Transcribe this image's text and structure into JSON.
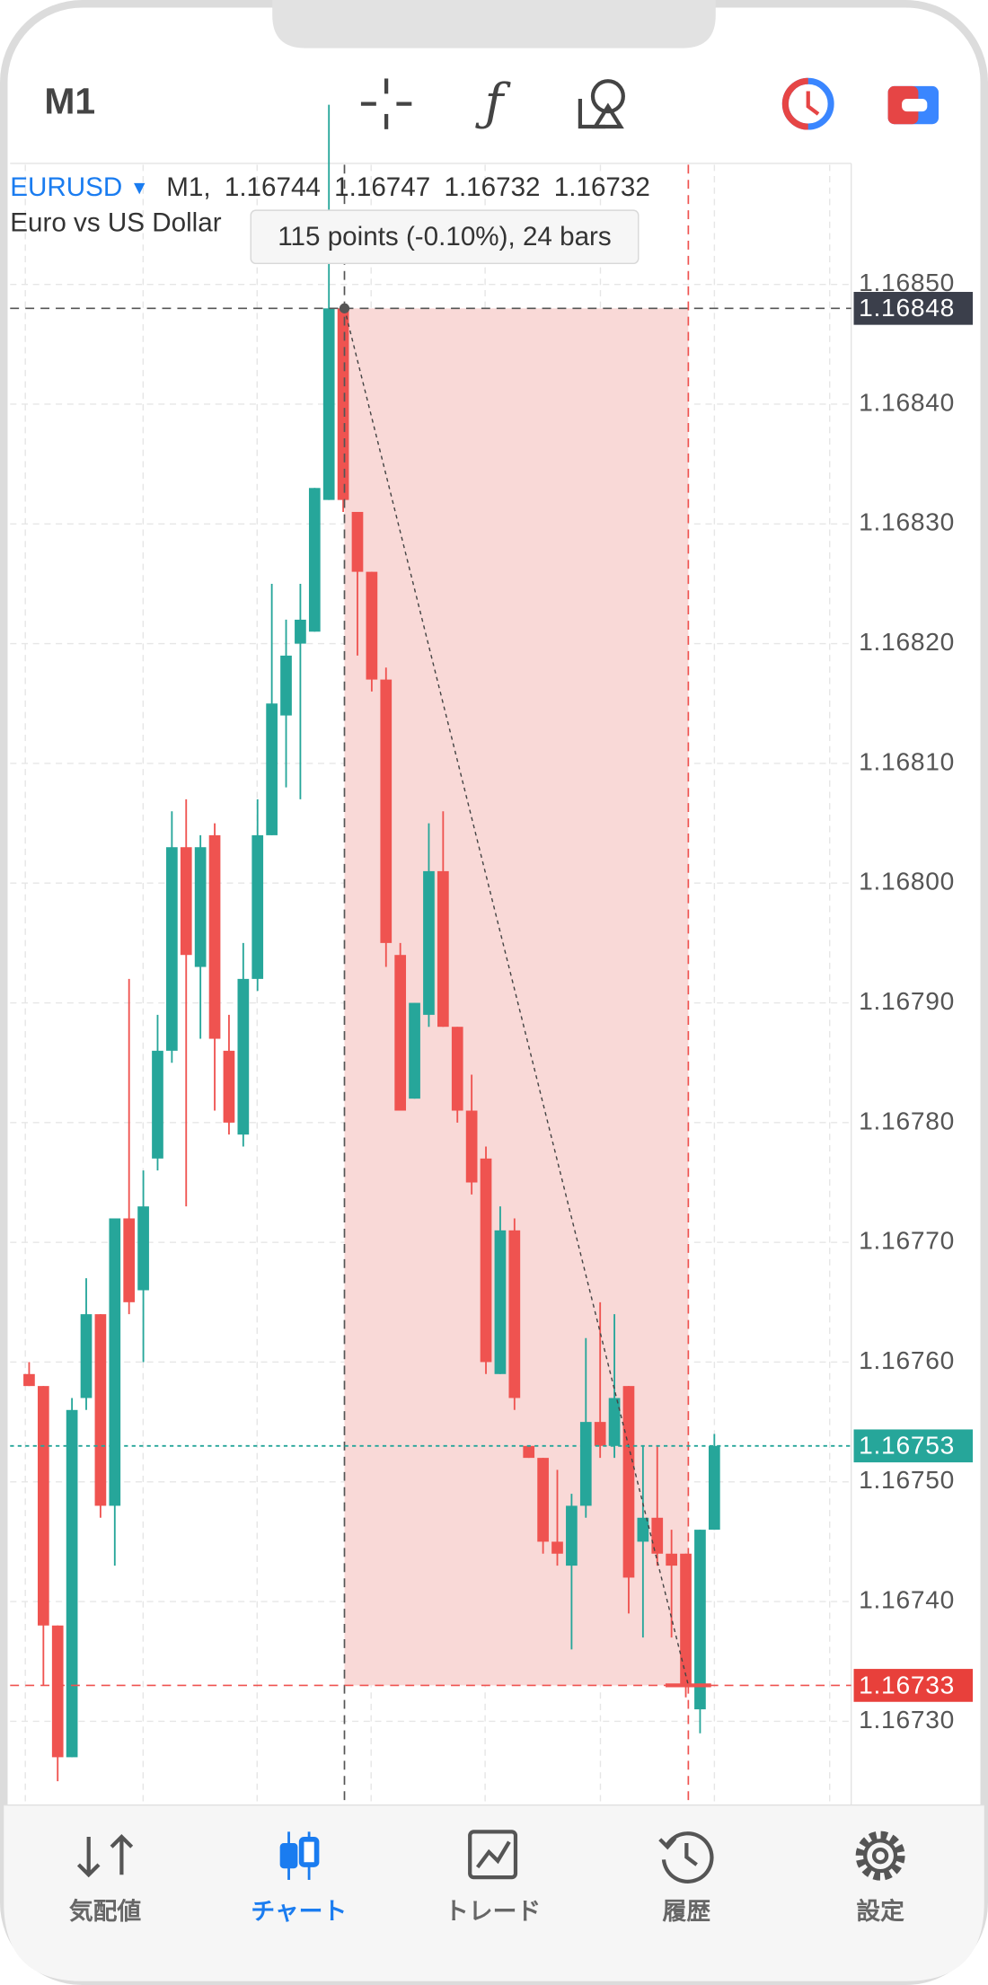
{
  "toolbar": {
    "timeframe": "M1"
  },
  "chart_data": {
    "type": "candlestick",
    "symbol": "EURUSD",
    "timeframe": "M1,",
    "ohlc": [
      1.16744,
      1.16747,
      1.16732,
      1.16732
    ],
    "description": "Euro vs US Dollar",
    "measure_label": "115 points (-0.10%), 24 bars",
    "up_color": "#26a69a",
    "down_color": "#ef5350",
    "open": [
      1.16759,
      1.16758,
      1.16738,
      1.16727,
      1.16757,
      1.16764,
      1.16748,
      1.16772,
      1.16766,
      1.16777,
      1.16786,
      1.16803,
      1.16793,
      1.16804,
      1.16786,
      1.16779,
      1.16792,
      1.16804,
      1.16814,
      1.1682,
      1.16821,
      1.16832,
      1.16848,
      1.16831,
      1.16826,
      1.16817,
      1.16794,
      1.16782,
      1.16789,
      1.16801,
      1.16788,
      1.16781,
      1.16777,
      1.16759,
      1.16771,
      1.16753,
      1.16752,
      1.16745,
      1.16743,
      1.16748,
      1.16755,
      1.16753,
      1.16758,
      1.16745,
      1.16747,
      1.16744,
      1.16744,
      1.16731,
      1.16746
    ],
    "high": [
      1.1676,
      1.16758,
      1.16738,
      1.16757,
      1.16767,
      1.16764,
      1.16772,
      1.16792,
      1.16776,
      1.16789,
      1.16806,
      1.16807,
      1.16804,
      1.16805,
      1.16789,
      1.16795,
      1.16807,
      1.16825,
      1.16822,
      1.16825,
      1.16833,
      1.16865,
      1.16848,
      1.16831,
      1.16826,
      1.16818,
      1.16795,
      1.1679,
      1.16805,
      1.16806,
      1.16788,
      1.16784,
      1.16778,
      1.16773,
      1.16772,
      1.16753,
      1.16752,
      1.16751,
      1.16749,
      1.16762,
      1.16765,
      1.16764,
      1.16758,
      1.16753,
      1.16753,
      1.16746,
      1.16744,
      1.16746,
      1.16754
    ],
    "low": [
      1.16758,
      1.16733,
      1.16725,
      1.16727,
      1.16756,
      1.16747,
      1.16743,
      1.16764,
      1.1676,
      1.16776,
      1.16785,
      1.16773,
      1.16787,
      1.16781,
      1.16779,
      1.16778,
      1.16791,
      1.16804,
      1.16808,
      1.16807,
      1.16821,
      1.16832,
      1.16831,
      1.16819,
      1.16816,
      1.16793,
      1.16781,
      1.16782,
      1.16788,
      1.16788,
      1.1678,
      1.16774,
      1.16759,
      1.16759,
      1.16756,
      1.16752,
      1.16744,
      1.16743,
      1.16736,
      1.16747,
      1.16752,
      1.16752,
      1.16739,
      1.16737,
      1.16743,
      1.16737,
      1.16732,
      1.16729,
      1.16746
    ],
    "close": [
      1.16758,
      1.16738,
      1.16727,
      1.16756,
      1.16764,
      1.16748,
      1.16772,
      1.16765,
      1.16773,
      1.16786,
      1.16803,
      1.16794,
      1.16803,
      1.16787,
      1.1678,
      1.16792,
      1.16804,
      1.16815,
      1.16819,
      1.16822,
      1.16833,
      1.16848,
      1.16832,
      1.16826,
      1.16817,
      1.16795,
      1.16781,
      1.1679,
      1.16801,
      1.16788,
      1.16781,
      1.16775,
      1.1676,
      1.16771,
      1.16757,
      1.16752,
      1.16745,
      1.16744,
      1.16748,
      1.16755,
      1.16753,
      1.16757,
      1.16742,
      1.16747,
      1.16744,
      1.16743,
      1.16733,
      1.16746,
      1.16753
    ],
    "ylim": [
      1.16723,
      1.1686
    ],
    "yticks": [
      {
        "value": 1.1685,
        "label": "1.16850"
      },
      {
        "value": 1.1684,
        "label": "1.16840"
      },
      {
        "value": 1.1683,
        "label": "1.16830"
      },
      {
        "value": 1.1682,
        "label": "1.16820"
      },
      {
        "value": 1.1681,
        "label": "1.16810"
      },
      {
        "value": 1.168,
        "label": "1.16800"
      },
      {
        "value": 1.1679,
        "label": "1.16790"
      },
      {
        "value": 1.1678,
        "label": "1.16780"
      },
      {
        "value": 1.1677,
        "label": "1.16770"
      },
      {
        "value": 1.1676,
        "label": "1.16760"
      },
      {
        "value": 1.1675,
        "label": "1.16750"
      },
      {
        "value": 1.1674,
        "label": "1.16740"
      },
      {
        "value": 1.1673,
        "label": "1.16730"
      }
    ],
    "grid": true,
    "bid": 1.16753,
    "crosshair_prices": [
      1.16848,
      1.16733
    ]
  },
  "tabs": [
    "気配値",
    "チャート",
    "トレード",
    "履歴",
    "設定"
  ]
}
